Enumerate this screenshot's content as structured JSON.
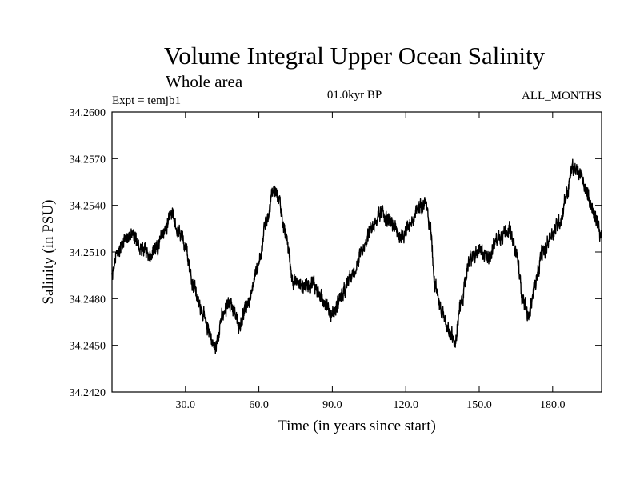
{
  "chart_data": {
    "type": "line",
    "title": "Volume Integral Upper Ocean Salinity",
    "subtitle": "Whole area",
    "expt_label": "Expt = temjb1",
    "center_label": "01.0kyr BP",
    "right_label": "ALL_MONTHS",
    "xlabel": "Time (in years since start)",
    "ylabel": "Salinity (in PSU)",
    "xlim": [
      0,
      200
    ],
    "ylim": [
      34.242,
      34.26
    ],
    "x_ticks": [
      30,
      60,
      90,
      120,
      150,
      180
    ],
    "x_tick_labels": [
      "30.0",
      "60.0",
      "90.0",
      "120.0",
      "150.0",
      "180.0"
    ],
    "y_ticks": [
      34.242,
      34.245,
      34.248,
      34.251,
      34.254,
      34.257,
      34.26
    ],
    "y_tick_labels": [
      "34.2420",
      "34.2450",
      "34.2480",
      "34.2510",
      "34.2540",
      "34.2570",
      "34.2600"
    ],
    "series": [
      {
        "name": "Salinity",
        "color": "#000000",
        "noise_amplitude": 0.0006,
        "samples_per_year": 12,
        "x": [
          0,
          2,
          5,
          8,
          12,
          15,
          18,
          22,
          24,
          27,
          30,
          33,
          36,
          39,
          42,
          45,
          48,
          52,
          56,
          60,
          63,
          66,
          68,
          71,
          74,
          78,
          82,
          86,
          90,
          94,
          98,
          102,
          106,
          110,
          114,
          118,
          122,
          126,
          128,
          130,
          132,
          135,
          138,
          140,
          143,
          146,
          150,
          154,
          158,
          162,
          165,
          168,
          170,
          173,
          176,
          180,
          183,
          186,
          188,
          191,
          194,
          197,
          200
        ],
        "y": [
          34.2495,
          34.2508,
          34.2518,
          34.2522,
          34.2512,
          34.2508,
          34.2512,
          34.2525,
          34.2535,
          34.2522,
          34.2515,
          34.249,
          34.2475,
          34.2462,
          34.2448,
          34.2468,
          34.2478,
          34.2464,
          34.2478,
          34.2502,
          34.253,
          34.255,
          34.2545,
          34.252,
          34.2492,
          34.2488,
          34.249,
          34.248,
          34.247,
          34.2482,
          34.2495,
          34.2508,
          34.2525,
          34.2535,
          34.2528,
          34.252,
          34.2528,
          34.254,
          34.2543,
          34.2525,
          34.249,
          34.247,
          34.2458,
          34.2452,
          34.248,
          34.2505,
          34.251,
          34.2508,
          34.252,
          34.2525,
          34.251,
          34.248,
          34.2468,
          34.249,
          34.251,
          34.2522,
          34.253,
          34.2548,
          34.2565,
          34.256,
          34.2548,
          34.2535,
          34.252
        ]
      }
    ]
  }
}
